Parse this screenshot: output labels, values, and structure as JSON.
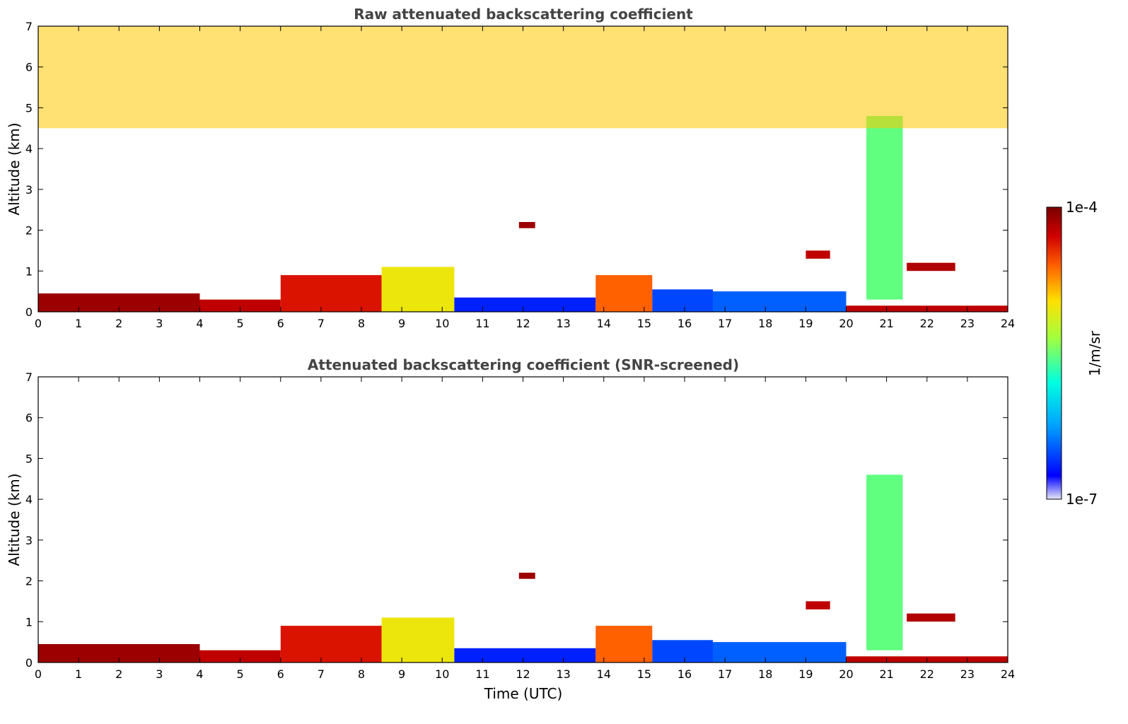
{
  "chart_data": [
    {
      "type": "heatmap",
      "title": "Raw attenuated backscattering coefficient",
      "xlabel": "",
      "ylabel": "Altitude (km)",
      "xlim": [
        0,
        24
      ],
      "ylim": [
        0,
        7
      ],
      "x_ticks": [
        "0",
        "1",
        "2",
        "3",
        "4",
        "5",
        "6",
        "7",
        "8",
        "9",
        "10",
        "11",
        "12",
        "13",
        "14",
        "15",
        "16",
        "17",
        "18",
        "19",
        "20",
        "21",
        "22",
        "23",
        "24"
      ],
      "y_ticks": [
        "0",
        "1",
        "2",
        "3",
        "4",
        "5",
        "6",
        "7"
      ],
      "grid": false,
      "colorscale": "log",
      "features": [
        {
          "x_start": 0,
          "x_end": 4,
          "bottom": 0,
          "top": 0.45,
          "level": 0.95
        },
        {
          "x_start": 4,
          "x_end": 6,
          "bottom": 0,
          "top": 0.3,
          "level": 0.9
        },
        {
          "x_start": 6,
          "x_end": 8.5,
          "bottom": 0,
          "top": 0.9,
          "level": 0.85
        },
        {
          "x_start": 8.5,
          "x_end": 10.3,
          "bottom": 0,
          "top": 1.1,
          "level": 0.6
        },
        {
          "x_start": 10.3,
          "x_end": 13.8,
          "bottom": 0,
          "top": 0.35,
          "level": 0.15
        },
        {
          "x_start": 13.8,
          "x_end": 15.2,
          "bottom": 0,
          "top": 0.9,
          "level": 0.75
        },
        {
          "x_start": 15.2,
          "x_end": 16.7,
          "bottom": 0,
          "top": 0.55,
          "level": 0.18
        },
        {
          "x_start": 16.7,
          "x_end": 20,
          "bottom": 0,
          "top": 0.5,
          "level": 0.2
        },
        {
          "x_start": 20,
          "x_end": 24,
          "bottom": 0,
          "top": 0.15,
          "level": 0.9
        },
        {
          "x_start": 20.5,
          "x_end": 21.4,
          "bottom": 0.3,
          "top": 4.8,
          "level": 0.45
        },
        {
          "x_start": 11.9,
          "x_end": 12.3,
          "bottom": 2.05,
          "top": 2.2,
          "level": 0.95
        },
        {
          "x_start": 19,
          "x_end": 19.6,
          "bottom": 1.3,
          "top": 1.5,
          "level": 0.9
        },
        {
          "x_start": 21.5,
          "x_end": 22.7,
          "bottom": 1.0,
          "top": 1.2,
          "level": 0.92
        },
        {
          "x_start": 0,
          "x_end": 24,
          "bottom": 4.5,
          "top": 7,
          "level": 0.65
        }
      ]
    },
    {
      "type": "heatmap",
      "title": "Attenuated backscattering coefficient (SNR-screened)",
      "xlabel": "Time (UTC)",
      "ylabel": "Altitude (km)",
      "xlim": [
        0,
        24
      ],
      "ylim": [
        0,
        7
      ],
      "x_ticks": [
        "0",
        "1",
        "2",
        "3",
        "4",
        "5",
        "6",
        "7",
        "8",
        "9",
        "10",
        "11",
        "12",
        "13",
        "14",
        "15",
        "16",
        "17",
        "18",
        "19",
        "20",
        "21",
        "22",
        "23",
        "24"
      ],
      "y_ticks": [
        "0",
        "1",
        "2",
        "3",
        "4",
        "5",
        "6",
        "7"
      ],
      "grid": false,
      "colorscale": "log",
      "features": [
        {
          "x_start": 0,
          "x_end": 4,
          "bottom": 0,
          "top": 0.45,
          "level": 0.95
        },
        {
          "x_start": 4,
          "x_end": 6,
          "bottom": 0,
          "top": 0.3,
          "level": 0.9
        },
        {
          "x_start": 6,
          "x_end": 8.5,
          "bottom": 0,
          "top": 0.9,
          "level": 0.85
        },
        {
          "x_start": 8.5,
          "x_end": 10.3,
          "bottom": 0,
          "top": 1.1,
          "level": 0.6
        },
        {
          "x_start": 10.3,
          "x_end": 13.8,
          "bottom": 0,
          "top": 0.35,
          "level": 0.15
        },
        {
          "x_start": 13.8,
          "x_end": 15.2,
          "bottom": 0,
          "top": 0.9,
          "level": 0.75
        },
        {
          "x_start": 15.2,
          "x_end": 16.7,
          "bottom": 0,
          "top": 0.55,
          "level": 0.18
        },
        {
          "x_start": 16.7,
          "x_end": 20,
          "bottom": 0,
          "top": 0.5,
          "level": 0.2
        },
        {
          "x_start": 20,
          "x_end": 24,
          "bottom": 0,
          "top": 0.15,
          "level": 0.9
        },
        {
          "x_start": 20.5,
          "x_end": 21.4,
          "bottom": 0.3,
          "top": 4.6,
          "level": 0.45
        },
        {
          "x_start": 11.9,
          "x_end": 12.3,
          "bottom": 2.05,
          "top": 2.2,
          "level": 0.95
        },
        {
          "x_start": 19,
          "x_end": 19.6,
          "bottom": 1.3,
          "top": 1.5,
          "level": 0.9
        },
        {
          "x_start": 21.5,
          "x_end": 22.7,
          "bottom": 1.0,
          "top": 1.2,
          "level": 0.92
        }
      ]
    }
  ],
  "colorbar": {
    "label": "1/m/sr",
    "max_label": "1e-4",
    "min_label": "1e-7",
    "colors": [
      "#e6e6f8",
      "#0000ff",
      "#00a0ff",
      "#00ffe0",
      "#a0ff40",
      "#ffe000",
      "#ff6000",
      "#d00000",
      "#7a0000"
    ]
  }
}
